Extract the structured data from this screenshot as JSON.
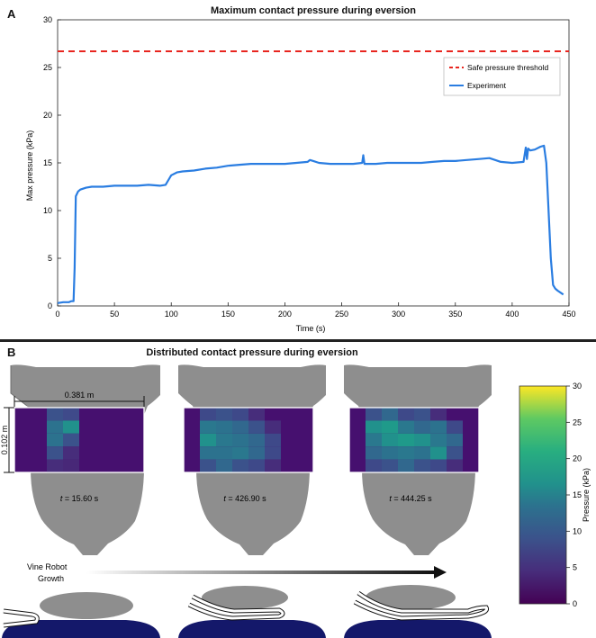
{
  "panel_a": {
    "letter": "A",
    "chart_data": {
      "type": "line",
      "title": "Maximum contact pressure during eversion",
      "xlabel": "Time (s)",
      "ylabel": "Max pressure (kPa)",
      "xlim": [
        0,
        450
      ],
      "ylim": [
        0,
        30
      ],
      "xticks": [
        0,
        50,
        100,
        150,
        200,
        250,
        300,
        350,
        400,
        450
      ],
      "yticks": [
        0,
        5,
        10,
        15,
        20,
        25,
        30
      ],
      "threshold": {
        "name": "Safe pressure threshold",
        "value": 26.7,
        "color": "#e8251f"
      },
      "series": [
        {
          "name": "Experiment",
          "color": "#2a7de1",
          "x": [
            0,
            5,
            10,
            12,
            13,
            14,
            15,
            16,
            18,
            20,
            25,
            30,
            40,
            50,
            60,
            70,
            80,
            90,
            95,
            98,
            100,
            105,
            110,
            120,
            130,
            140,
            150,
            160,
            170,
            180,
            190,
            200,
            210,
            220,
            222,
            225,
            230,
            240,
            250,
            260,
            268,
            269,
            270,
            275,
            280,
            290,
            300,
            310,
            320,
            330,
            340,
            350,
            360,
            370,
            380,
            385,
            390,
            400,
            410,
            412,
            413,
            414,
            416,
            420,
            425,
            428,
            430,
            432,
            434,
            436,
            438,
            440,
            445
          ],
          "y": [
            0.3,
            0.4,
            0.4,
            0.5,
            0.5,
            0.5,
            4.0,
            11.5,
            12.0,
            12.2,
            12.4,
            12.5,
            12.5,
            12.6,
            12.6,
            12.6,
            12.7,
            12.6,
            12.7,
            13.3,
            13.7,
            14.0,
            14.1,
            14.2,
            14.4,
            14.5,
            14.7,
            14.8,
            14.9,
            14.9,
            14.9,
            14.9,
            15.0,
            15.1,
            15.3,
            15.2,
            15.0,
            14.9,
            14.9,
            14.9,
            15.0,
            15.8,
            14.9,
            14.9,
            14.9,
            15.0,
            15.0,
            15.0,
            15.0,
            15.1,
            15.2,
            15.2,
            15.3,
            15.4,
            15.5,
            15.3,
            15.1,
            15.0,
            15.1,
            16.6,
            15.4,
            16.5,
            16.3,
            16.4,
            16.7,
            16.8,
            15.0,
            10.0,
            5.0,
            2.2,
            1.8,
            1.6,
            1.2
          ]
        }
      ]
    }
  },
  "panel_b": {
    "letter": "B",
    "title": "Distributed contact pressure during eversion",
    "dimension_width": "0.381 m",
    "dimension_height": "0.102 m",
    "snapshots": [
      {
        "t_symbol": "t",
        "t_value": "= 15.60 s"
      },
      {
        "t_symbol": "t",
        "t_value": "= 426.90 s"
      },
      {
        "t_symbol": "t",
        "t_value": "= 444.25 s"
      }
    ],
    "growth_label_line1": "Vine Robot",
    "growth_label_line2": "Growth",
    "colorbar": {
      "label": "Pressure (kPa)",
      "ticks": [
        "30",
        "25",
        "20",
        "15",
        "10",
        "5",
        "0"
      ]
    },
    "colors": {
      "body": "#8e8e8e",
      "body_dark": "#6f6f6f",
      "heatmap_base": "#46106f",
      "bed": "#14186a"
    }
  }
}
